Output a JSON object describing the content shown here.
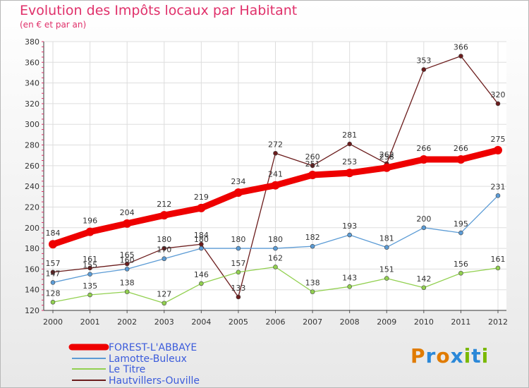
{
  "chart_data": {
    "type": "line",
    "title": "Evolution des Impôts locaux par Habitant",
    "subtitle": "(en € et par an)",
    "x": [
      "2000",
      "2001",
      "2002",
      "2003",
      "2004",
      "2005",
      "2006",
      "2007",
      "2008",
      "2009",
      "2010",
      "2011",
      "2012"
    ],
    "ylim": [
      120,
      380
    ],
    "yticks": [
      120,
      140,
      160,
      180,
      200,
      220,
      240,
      260,
      280,
      300,
      320,
      340,
      360,
      380
    ],
    "grid": true,
    "legend_position": "bottom-left",
    "series": [
      {
        "name": "FOREST-L'ABBAYE",
        "color": "#ee0000",
        "values": [
          184,
          196,
          204,
          212,
          219,
          234,
          241,
          251,
          253,
          258,
          266,
          266,
          275
        ]
      },
      {
        "name": "Lamotte-Buleux",
        "color": "#5b9bd5",
        "values": [
          147,
          155,
          160,
          170,
          180,
          180,
          180,
          182,
          193,
          181,
          200,
          195,
          231
        ]
      },
      {
        "name": "Le Titre",
        "color": "#92d050",
        "values": [
          128,
          135,
          138,
          127,
          146,
          157,
          162,
          138,
          143,
          151,
          142,
          156,
          161
        ]
      },
      {
        "name": "Hautvillers-Ouville",
        "color": "#6b1c1c",
        "values": [
          157,
          161,
          165,
          180,
          184,
          133,
          272,
          260,
          281,
          262,
          353,
          366,
          320
        ]
      }
    ]
  },
  "logo": {
    "text": "Proxiti",
    "letters": [
      "P",
      "r",
      "o",
      "x",
      "i",
      "t",
      "i"
    ],
    "colors": [
      "#e07b00",
      "#2b88d8",
      "#e07b00",
      "#2b88d8",
      "#7ab800",
      "#2b88d8",
      "#7ab800"
    ]
  }
}
